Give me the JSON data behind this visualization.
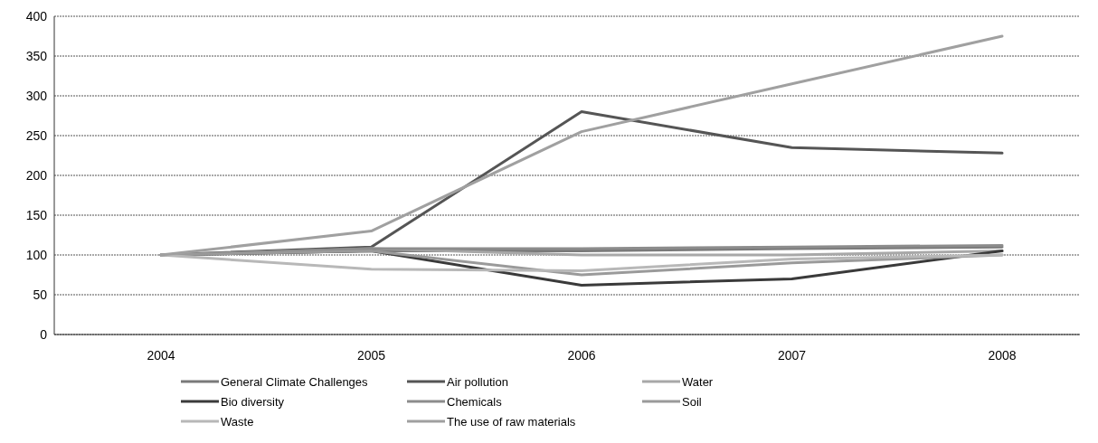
{
  "chart_data": {
    "type": "line",
    "categories": [
      "2004",
      "2005",
      "2006",
      "2007",
      "2008"
    ],
    "ylim": [
      0,
      400
    ],
    "yticks": [
      0,
      50,
      100,
      150,
      200,
      250,
      300,
      350,
      400
    ],
    "grid": "y",
    "legend": "bottom",
    "series": [
      {
        "name": "General Climate Challenges",
        "color": "#7a7a7a",
        "values": [
          100,
          105,
          105,
          108,
          110
        ]
      },
      {
        "name": "Air pollution",
        "color": "#555555",
        "values": [
          100,
          110,
          280,
          235,
          228
        ]
      },
      {
        "name": "Water",
        "color": "#a8a8a8",
        "values": [
          100,
          108,
          100,
          100,
          105
        ]
      },
      {
        "name": "Bio diversity",
        "color": "#3a3a3a",
        "values": [
          100,
          105,
          62,
          70,
          105
        ]
      },
      {
        "name": "Chemicals",
        "color": "#8c8c8c",
        "values": [
          100,
          108,
          108,
          110,
          112
        ]
      },
      {
        "name": "Soil",
        "color": "#9a9a9a",
        "values": [
          100,
          105,
          75,
          90,
          100
        ]
      },
      {
        "name": "Waste",
        "color": "#b8b8b8",
        "values": [
          100,
          82,
          80,
          95,
          100
        ]
      },
      {
        "name": "The use of raw materials",
        "color": "#a0a0a0",
        "values": [
          100,
          130,
          255,
          315,
          375
        ]
      }
    ]
  }
}
